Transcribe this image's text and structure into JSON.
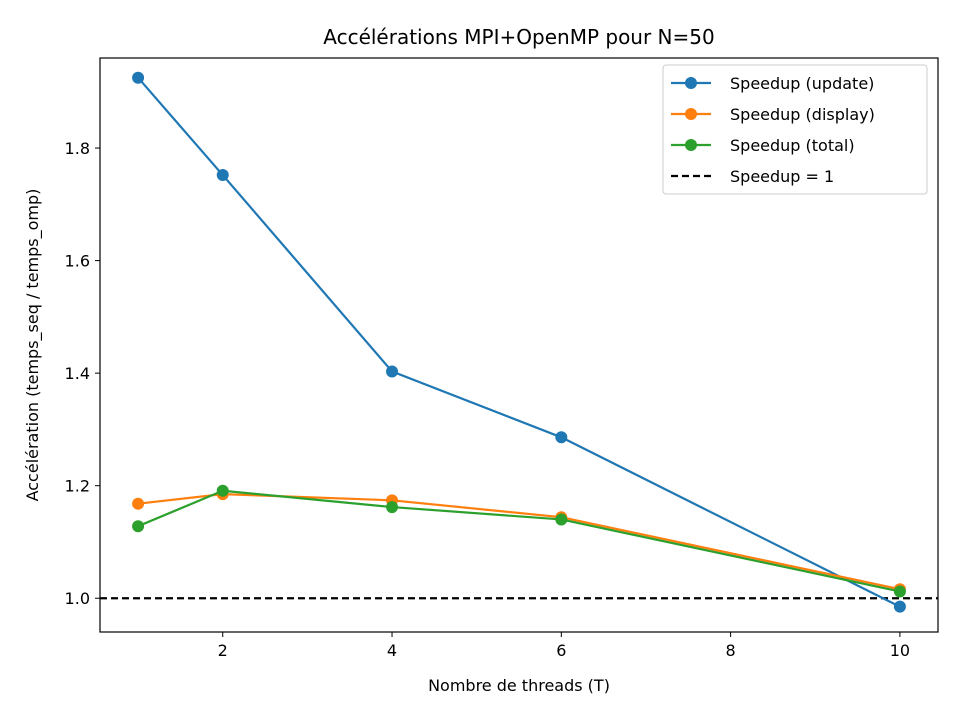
{
  "chart_data": {
    "type": "line",
    "title": "Accélérations MPI+OpenMP pour N=50",
    "xlabel": "Nombre de threads (T)",
    "ylabel": "Accélération (temps_seq / temps_omp)",
    "x": [
      1,
      2,
      4,
      6,
      10
    ],
    "xlim": [
      0.55,
      10.45
    ],
    "ylim": [
      0.94,
      1.96
    ],
    "xticks": [
      2,
      4,
      6,
      8,
      10
    ],
    "yticks": [
      1.0,
      1.2,
      1.4,
      1.6,
      1.8
    ],
    "xtick_labels": [
      "2",
      "4",
      "6",
      "8",
      "10"
    ],
    "ytick_labels": [
      "1.0",
      "1.2",
      "1.4",
      "1.6",
      "1.8"
    ],
    "grid": false,
    "legend_position": "top-right",
    "series": [
      {
        "name": "Speedup (update)",
        "color": "#1f77b4",
        "marker": "circle",
        "values": [
          1.925,
          1.752,
          1.403,
          1.286,
          0.985
        ]
      },
      {
        "name": "Speedup (display)",
        "color": "#ff7f0e",
        "marker": "circle",
        "values": [
          1.168,
          1.185,
          1.174,
          1.144,
          1.016
        ]
      },
      {
        "name": "Speedup (total)",
        "color": "#2ca02c",
        "marker": "circle",
        "values": [
          1.128,
          1.191,
          1.162,
          1.14,
          1.012
        ]
      }
    ],
    "reference_line": {
      "name": "Speedup = 1",
      "y": 1.0,
      "color": "#000000",
      "style": "dashed"
    }
  }
}
